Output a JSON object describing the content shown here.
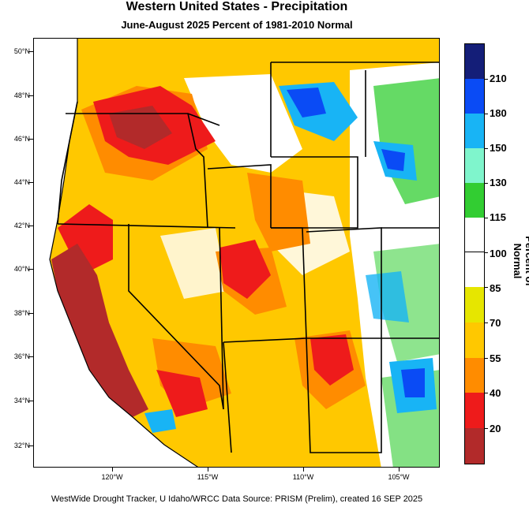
{
  "title": "Western United States - Precipitation",
  "subtitle": "June-August 2025  Percent of 1981-2010 Normal",
  "latitude_labels": [
    "50°N",
    "48°N",
    "46°N",
    "44°N",
    "42°N",
    "40°N",
    "38°N",
    "36°N",
    "34°N",
    "32°N"
  ],
  "longitude_labels": [
    "120°W",
    "115°W",
    "110°W",
    "105°W"
  ],
  "legend": {
    "title": "Percent of Normal",
    "levels": [
      "20",
      "40",
      "55",
      "70",
      "85",
      "100",
      "115",
      "130",
      "150",
      "180",
      "210"
    ],
    "colors": [
      "#b22a2a",
      "#ee1b1b",
      "#ff8c00",
      "#ffc800",
      "#e6e600",
      "#ffffff",
      "#ffffff",
      "#32cd32",
      "#7ff5cc",
      "#18b4f5",
      "#0a4bf5",
      "#141e78"
    ]
  },
  "footer": "WestWide Drought Tracker, U Idaho/WRCC Data Source: PRISM (Prelim), created 16 SEP 2025",
  "colors": {
    "land_default": "#ffc800",
    "ocean": "#ffffff",
    "border": "#000000"
  }
}
